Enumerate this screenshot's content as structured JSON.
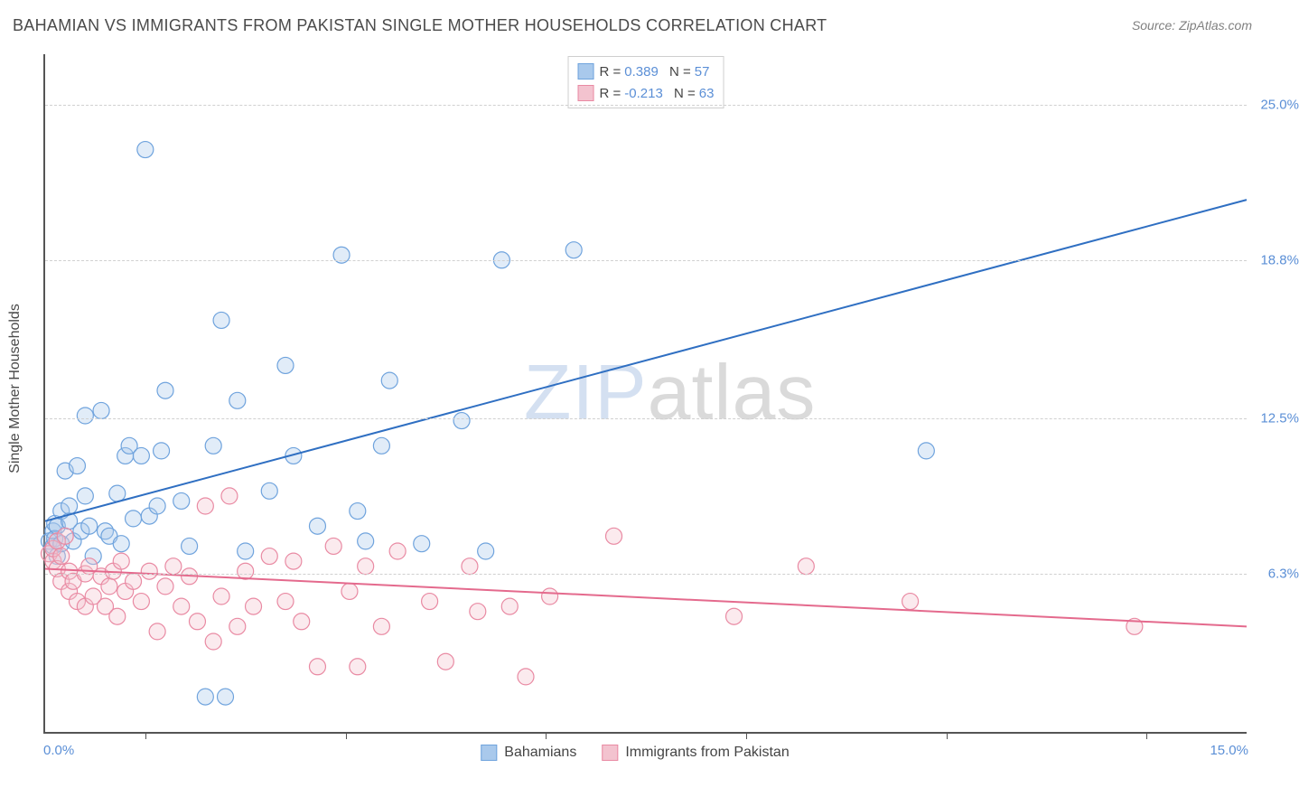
{
  "title": "BAHAMIAN VS IMMIGRANTS FROM PAKISTAN SINGLE MOTHER HOUSEHOLDS CORRELATION CHART",
  "source": "Source: ZipAtlas.com",
  "y_axis_label": "Single Mother Households",
  "watermark": {
    "part1": "ZIP",
    "part2": "atlas"
  },
  "chart": {
    "type": "scatter",
    "background_color": "#ffffff",
    "grid_color": "#d0d0d0",
    "axis_color": "#555555",
    "tick_label_color": "#5b8fd6",
    "xlim": [
      0,
      15
    ],
    "ylim": [
      0,
      27
    ],
    "y_ticks": [
      {
        "value": 6.3,
        "label": "6.3%"
      },
      {
        "value": 12.5,
        "label": "12.5%"
      },
      {
        "value": 18.8,
        "label": "18.8%"
      },
      {
        "value": 25.0,
        "label": "25.0%"
      }
    ],
    "x_tick_positions": [
      1.25,
      3.75,
      6.25,
      8.75,
      11.25,
      13.75
    ],
    "x_left_label": "0.0%",
    "x_right_label": "15.0%",
    "marker_radius": 9,
    "marker_fill_opacity": 0.35,
    "marker_stroke_width": 1.2,
    "line_width": 2,
    "series": [
      {
        "id": "bahamians",
        "label": "Bahamians",
        "color_fill": "#a9c9ec",
        "color_stroke": "#6fa3dd",
        "line_color": "#2f6fc2",
        "R": "0.389",
        "N": "57",
        "regression": {
          "x1": 0,
          "y1": 8.4,
          "x2": 15,
          "y2": 21.2
        },
        "points": [
          [
            0.05,
            7.6
          ],
          [
            0.1,
            8.0
          ],
          [
            0.1,
            7.4
          ],
          [
            0.12,
            8.3
          ],
          [
            0.12,
            7.7
          ],
          [
            0.15,
            7.0
          ],
          [
            0.15,
            8.2
          ],
          [
            0.2,
            8.8
          ],
          [
            0.2,
            7.5
          ],
          [
            0.25,
            10.4
          ],
          [
            0.3,
            8.4
          ],
          [
            0.3,
            9.0
          ],
          [
            0.35,
            7.6
          ],
          [
            0.4,
            10.6
          ],
          [
            0.45,
            8.0
          ],
          [
            0.5,
            9.4
          ],
          [
            0.5,
            12.6
          ],
          [
            0.55,
            8.2
          ],
          [
            0.6,
            7.0
          ],
          [
            0.7,
            12.8
          ],
          [
            0.75,
            8.0
          ],
          [
            0.8,
            7.8
          ],
          [
            0.9,
            9.5
          ],
          [
            0.95,
            7.5
          ],
          [
            1.0,
            11.0
          ],
          [
            1.05,
            11.4
          ],
          [
            1.1,
            8.5
          ],
          [
            1.2,
            11.0
          ],
          [
            1.25,
            23.2
          ],
          [
            1.3,
            8.6
          ],
          [
            1.4,
            9.0
          ],
          [
            1.45,
            11.2
          ],
          [
            1.5,
            13.6
          ],
          [
            1.7,
            9.2
          ],
          [
            1.8,
            7.4
          ],
          [
            2.0,
            1.4
          ],
          [
            2.1,
            11.4
          ],
          [
            2.2,
            16.4
          ],
          [
            2.25,
            1.4
          ],
          [
            2.4,
            13.2
          ],
          [
            2.5,
            7.2
          ],
          [
            2.8,
            9.6
          ],
          [
            3.0,
            14.6
          ],
          [
            3.1,
            11.0
          ],
          [
            3.4,
            8.2
          ],
          [
            3.7,
            19.0
          ],
          [
            3.9,
            8.8
          ],
          [
            4.0,
            7.6
          ],
          [
            4.2,
            11.4
          ],
          [
            4.3,
            14.0
          ],
          [
            4.7,
            7.5
          ],
          [
            5.2,
            12.4
          ],
          [
            5.5,
            7.2
          ],
          [
            5.7,
            18.8
          ],
          [
            6.6,
            19.2
          ],
          [
            11.0,
            11.2
          ]
        ]
      },
      {
        "id": "pakistan",
        "label": "Immigrants from Pakistan",
        "color_fill": "#f3c3cf",
        "color_stroke": "#e98aa3",
        "line_color": "#e46a8d",
        "R": "-0.213",
        "N": "63",
        "regression": {
          "x1": 0,
          "y1": 6.5,
          "x2": 15,
          "y2": 4.2
        },
        "points": [
          [
            0.05,
            7.1
          ],
          [
            0.1,
            6.8
          ],
          [
            0.1,
            7.3
          ],
          [
            0.15,
            6.5
          ],
          [
            0.15,
            7.6
          ],
          [
            0.2,
            6.0
          ],
          [
            0.2,
            7.0
          ],
          [
            0.25,
            7.8
          ],
          [
            0.3,
            5.6
          ],
          [
            0.3,
            6.4
          ],
          [
            0.35,
            6.0
          ],
          [
            0.4,
            5.2
          ],
          [
            0.5,
            6.3
          ],
          [
            0.5,
            5.0
          ],
          [
            0.55,
            6.6
          ],
          [
            0.6,
            5.4
          ],
          [
            0.7,
            6.2
          ],
          [
            0.75,
            5.0
          ],
          [
            0.8,
            5.8
          ],
          [
            0.85,
            6.4
          ],
          [
            0.9,
            4.6
          ],
          [
            0.95,
            6.8
          ],
          [
            1.0,
            5.6
          ],
          [
            1.1,
            6.0
          ],
          [
            1.2,
            5.2
          ],
          [
            1.3,
            6.4
          ],
          [
            1.4,
            4.0
          ],
          [
            1.5,
            5.8
          ],
          [
            1.6,
            6.6
          ],
          [
            1.7,
            5.0
          ],
          [
            1.8,
            6.2
          ],
          [
            1.9,
            4.4
          ],
          [
            2.0,
            9.0
          ],
          [
            2.1,
            3.6
          ],
          [
            2.2,
            5.4
          ],
          [
            2.3,
            9.4
          ],
          [
            2.4,
            4.2
          ],
          [
            2.5,
            6.4
          ],
          [
            2.6,
            5.0
          ],
          [
            2.8,
            7.0
          ],
          [
            3.0,
            5.2
          ],
          [
            3.1,
            6.8
          ],
          [
            3.2,
            4.4
          ],
          [
            3.4,
            2.6
          ],
          [
            3.6,
            7.4
          ],
          [
            3.8,
            5.6
          ],
          [
            3.9,
            2.6
          ],
          [
            4.0,
            6.6
          ],
          [
            4.2,
            4.2
          ],
          [
            4.4,
            7.2
          ],
          [
            4.8,
            5.2
          ],
          [
            5.0,
            2.8
          ],
          [
            5.3,
            6.6
          ],
          [
            5.4,
            4.8
          ],
          [
            5.8,
            5.0
          ],
          [
            6.0,
            2.2
          ],
          [
            6.3,
            5.4
          ],
          [
            7.1,
            7.8
          ],
          [
            8.6,
            4.6
          ],
          [
            9.5,
            6.6
          ],
          [
            10.8,
            5.2
          ],
          [
            13.6,
            4.2
          ]
        ]
      }
    ]
  },
  "legend": {
    "r_label": "R =",
    "n_label": "N ="
  }
}
